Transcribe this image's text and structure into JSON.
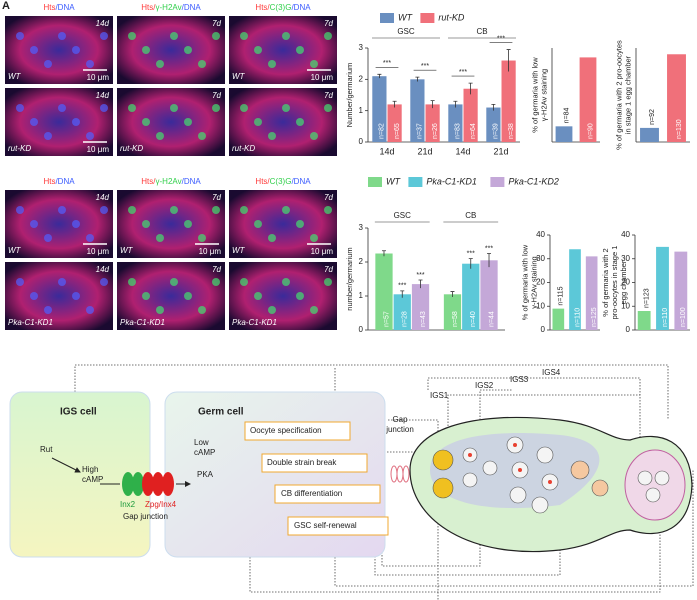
{
  "figure_label": "A",
  "micrographs": {
    "headers": [
      [
        {
          "text": "Hts",
          "color": "#ff3a3a"
        },
        {
          "text": "/DNA",
          "color": "#3a5bff"
        }
      ],
      [
        {
          "text": "Hts/",
          "color": "#ff3a3a"
        },
        {
          "text": "γ-H2Av",
          "color": "#2fcf4a"
        },
        {
          "text": "/DNA",
          "color": "#3a5bff"
        }
      ],
      [
        {
          "text": "Hts/",
          "color": "#ff3a3a"
        },
        {
          "text": "C(3)G",
          "color": "#2fcf4a"
        },
        {
          "text": "/DNA",
          "color": "#3a5bff"
        }
      ],
      [
        {
          "text": "Hts",
          "color": "#ff3a3a"
        },
        {
          "text": "/DNA",
          "color": "#3a5bff"
        }
      ],
      [
        {
          "text": "Hts/",
          "color": "#ff3a3a"
        },
        {
          "text": "γ-H2Av",
          "color": "#2fcf4a"
        },
        {
          "text": "/DNA",
          "color": "#3a5bff"
        }
      ],
      [
        {
          "text": "Hts/",
          "color": "#ff3a3a"
        },
        {
          "text": "C(3)G",
          "color": "#2fcf4a"
        },
        {
          "text": "/DNA",
          "color": "#3a5bff"
        }
      ]
    ],
    "panels": [
      {
        "time": "14d",
        "genotype": "WT",
        "scale": "10 μm"
      },
      {
        "time": "7d"
      },
      {
        "time": "7d",
        "genotype": "WT",
        "scale": "10 μm"
      },
      {
        "time": "14d",
        "genotype": "rut-KD",
        "scale": "10 μm"
      },
      {
        "time": "7d",
        "genotype": "rut-KD"
      },
      {
        "time": "7d",
        "genotype": "rut-KD"
      },
      {
        "time": "14d",
        "genotype": "WT",
        "scale": "10 μm"
      },
      {
        "time": "7d",
        "genotype": "WT",
        "scale": "10 μm"
      },
      {
        "time": "7d",
        "genotype": "WT",
        "scale": "10 μm"
      },
      {
        "time": "14d",
        "genotype": "Pka-C1-KD1"
      },
      {
        "time": "7d",
        "genotype": "Pka-C1-KD1"
      },
      {
        "time": "7d",
        "genotype": "Pka-C1-KD1"
      }
    ]
  },
  "chart_data": [
    {
      "type": "bar",
      "y_label": [
        "Number/germarium"
      ],
      "categories": [
        "14d",
        "21d",
        "14d",
        "21d"
      ],
      "group_labels": [
        "GSC",
        "CB"
      ],
      "ylim": [
        0,
        3
      ],
      "yticks": [
        0,
        1,
        2,
        3
      ],
      "legend": true,
      "series": [
        {
          "name": "WT",
          "color": "#6a8fc0",
          "values": [
            2.1,
            2.0,
            1.2,
            1.1
          ],
          "errors": [
            0.06,
            0.07,
            0.1,
            0.1
          ],
          "value_labels": [
            "n=82",
            "n=37",
            "n=83",
            "n=39"
          ]
        },
        {
          "name": "rut-KD",
          "color": "#f0707a",
          "values": [
            1.2,
            1.2,
            1.7,
            2.6
          ],
          "errors": [
            0.1,
            0.12,
            0.18,
            0.35
          ],
          "value_labels": [
            "n=65",
            "n=26",
            "n=64",
            "n=38"
          ]
        }
      ],
      "sig_labels": [
        "***",
        "***",
        "***",
        "***"
      ]
    },
    {
      "type": "bar",
      "y_label": [
        "% of germaria with low",
        "γ-H2Av staining"
      ],
      "categories": [
        null,
        null
      ],
      "ylim": [
        0,
        30
      ],
      "values": [
        5,
        27
      ],
      "colors": [
        "#6a8fc0",
        "#f0707a"
      ],
      "value_labels": [
        "n=84",
        "n=90"
      ]
    },
    {
      "type": "bar",
      "y_label": [
        "% of germaria with 2 pro-oocytes",
        "in stage 1 egg chamber"
      ],
      "categories": [
        null,
        null
      ],
      "ylim": [
        0,
        30
      ],
      "values": [
        4.5,
        28
      ],
      "colors": [
        "#6a8fc0",
        "#f0707a"
      ],
      "value_labels": [
        "n=92",
        "n=130"
      ]
    },
    {
      "type": "bar",
      "y_label": [
        "number/germarium"
      ],
      "categories": [
        "GSC",
        "CB"
      ],
      "category_labels_above": true,
      "ylim": [
        0,
        3
      ],
      "yticks": [
        0,
        1,
        2,
        3
      ],
      "legend": true,
      "series": [
        {
          "name": "WT",
          "color": "#7fd98a",
          "values": [
            2.25,
            1.05
          ],
          "errors": [
            0.08,
            0.08
          ],
          "value_labels": [
            "n=57",
            "n=58"
          ]
        },
        {
          "name": "Pka-C1-KD1",
          "color": "#5cc8d8",
          "values": [
            1.05,
            1.95
          ],
          "errors": [
            0.1,
            0.15
          ],
          "value_labels": [
            "n=28",
            "n=40"
          ],
          "sig_labels": [
            "***",
            "***"
          ]
        },
        {
          "name": "Pka-C1-KD2",
          "color": "#c4a8d8",
          "values": [
            1.35,
            2.05
          ],
          "errors": [
            0.12,
            0.2
          ],
          "value_labels": [
            "n=43",
            "n=44"
          ],
          "sig_labels": [
            "***",
            "***"
          ]
        }
      ]
    },
    {
      "type": "bar",
      "y_label": [
        "% of germaria with low",
        "γ-H2Av staining"
      ],
      "categories": [
        null,
        null,
        null
      ],
      "ylim": [
        0,
        40
      ],
      "yticks": [
        0,
        10,
        20,
        30,
        40
      ],
      "values": [
        9,
        34,
        31
      ],
      "colors": [
        "#7fd98a",
        "#5cc8d8",
        "#c4a8d8"
      ],
      "value_labels": [
        "n=115",
        "n=110",
        "n=125"
      ]
    },
    {
      "type": "bar",
      "y_label": [
        "% of germaria with 2",
        "pro-oocytes in stage 1",
        "egg chamber"
      ],
      "categories": [
        null,
        null,
        null
      ],
      "ylim": [
        0,
        40
      ],
      "yticks": [
        0,
        10,
        20,
        30,
        40
      ],
      "values": [
        8,
        35,
        33
      ],
      "colors": [
        "#7fd98a",
        "#5cc8d8",
        "#c4a8d8"
      ],
      "value_labels": [
        "n=123",
        "n=110",
        "n=100"
      ]
    }
  ],
  "diagram": {
    "igs_title": "IGS cell",
    "rut": "Rut",
    "high_camp": [
      "High",
      "cAMP"
    ],
    "inx2": "Inx2",
    "zpg": "Zpg/Inx4",
    "gap_junction": "Gap junction",
    "germ_title": "Germ cell",
    "low_camp": [
      "Low",
      "cAMP"
    ],
    "pka": "PKA",
    "outputs": [
      "Oocyte specification",
      "Double strain break",
      "CB differentiation",
      "GSC self-renewal"
    ],
    "germarium_gap": [
      "Gap",
      "junction"
    ],
    "regions": [
      "IGS1",
      "IGS2",
      "IGS3",
      "IGS4"
    ]
  }
}
